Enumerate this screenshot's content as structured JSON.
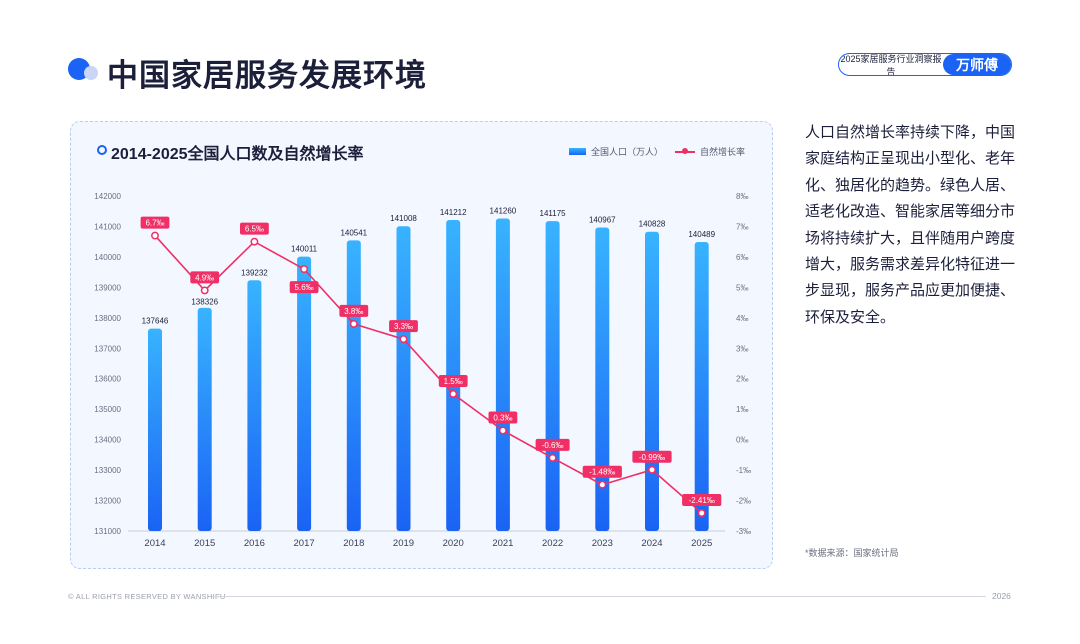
{
  "page_title": "中国家居服务发展环境",
  "brand": {
    "report_label": "2025家居服务行业洞察报告",
    "logo_text": "万师傅"
  },
  "side_text": "人口自然增长率持续下降，中国家庭结构正呈现出小型化、老年化、独居化的趋势。绿色人居、适老化改造、智能家居等细分市场将持续扩大，且伴随用户跨度增大，服务需求差异化特征进一步显现，服务产品应更加便捷、环保及安全。",
  "source": "*数据来源：国家统计局",
  "footer": {
    "rights": "© ALL RIGHTS RESERVED BY WANSHIFU",
    "year": "2026"
  },
  "colors": {
    "accent": "#1a63f4",
    "bar_top": "#38b3ff",
    "bar_bottom": "#1a63f4",
    "line": "#ef2f66"
  },
  "chart_data": {
    "type": "bar",
    "title": "2014-2025全国人口数及自然增长率",
    "categories": [
      "2014",
      "2015",
      "2016",
      "2017",
      "2018",
      "2019",
      "2020",
      "2021",
      "2022",
      "2023",
      "2024",
      "2025"
    ],
    "series": [
      {
        "name": "全国人口（万人）",
        "type": "bar",
        "axis": "left",
        "values": [
          137646,
          138326,
          139232,
          140011,
          140541,
          141008,
          141212,
          141260,
          141175,
          140967,
          140828,
          140489
        ]
      },
      {
        "name": "自然增长率",
        "type": "line",
        "axis": "right",
        "values": [
          6.7,
          4.9,
          6.5,
          5.6,
          3.8,
          3.3,
          1.5,
          0.3,
          -0.6,
          -1.48,
          -0.99,
          -2.41
        ],
        "labels": [
          "6.7‰",
          "4.9‰",
          "6.5‰",
          "5.6‰",
          "3.8‰",
          "3.3‰",
          "1.5‰",
          "0.3‰",
          "-0.6‰",
          "-1.48‰",
          "-0.99‰",
          "-2.41‰"
        ]
      }
    ],
    "y_left": {
      "min": 131000,
      "max": 142000,
      "ticks": [
        "131000",
        "132000",
        "133000",
        "134000",
        "135000",
        "136000",
        "137000",
        "138000",
        "139000",
        "140000",
        "141000",
        "142000"
      ]
    },
    "y_right": {
      "min": -3,
      "max": 8,
      "ticks": [
        "-3‰",
        "-2‰",
        "-1‰",
        "0‰",
        "1‰",
        "2‰",
        "3‰",
        "4‰",
        "5‰",
        "6‰",
        "7‰",
        "8‰"
      ]
    },
    "grid": false,
    "legend_position": "top-right"
  }
}
